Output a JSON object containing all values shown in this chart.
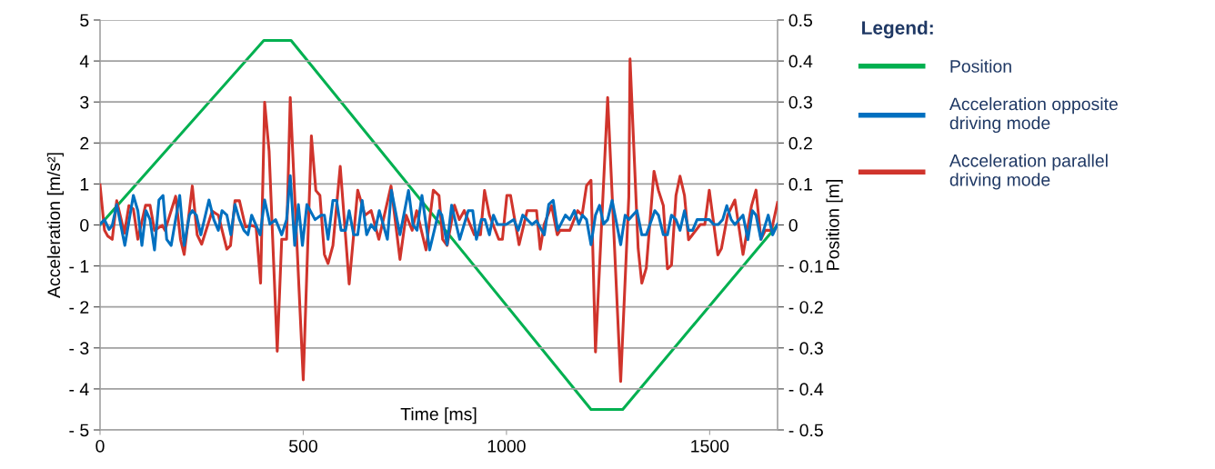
{
  "chart_data": {
    "type": "line",
    "xlabel": "Time [ms]",
    "ylabel": "Acceleration [m/s²]",
    "y2label": "Position [m]",
    "legend_title": "Legend:",
    "xlim": [
      0,
      1667
    ],
    "xticks": [
      0,
      500,
      1000,
      1500
    ],
    "ylim": [
      -5,
      5
    ],
    "yticks": [
      {
        "value": -5,
        "label": "- 5"
      },
      {
        "value": -4,
        "label": "- 4"
      },
      {
        "value": -3,
        "label": "- 3"
      },
      {
        "value": -2,
        "label": "- 2"
      },
      {
        "value": -1,
        "label": "- 1"
      },
      0,
      1,
      2,
      3,
      4,
      5
    ],
    "y2lim": [
      -0.5,
      0.5
    ],
    "y2ticks": [
      {
        "value": -0.5,
        "label": "- 0.5"
      },
      {
        "value": -0.4,
        "label": "- 0.4"
      },
      {
        "value": -0.3,
        "label": "- 0.3"
      },
      {
        "value": -0.2,
        "label": "- 0.2"
      },
      {
        "value": -0.1,
        "label": "- 0.1"
      },
      0,
      0.1,
      0.2,
      0.3,
      0.4,
      0.5
    ],
    "grid": "y",
    "legend": "right",
    "marker": "none",
    "line_style": "solid",
    "series": [
      {
        "name": "Position",
        "color": "#00b050",
        "axis": "y2",
        "x": [
          0,
          403,
          470,
          1208,
          1286,
          1667
        ],
        "values": [
          0,
          0.45,
          0.45,
          -0.45,
          -0.45,
          0
        ]
      },
      {
        "name": "Acceleration opposite\ndriving mode",
        "color": "#0070c0",
        "x": [
          0,
          11,
          22,
          30,
          41,
          61,
          82,
          93,
          103,
          113,
          123,
          134,
          145,
          155,
          164,
          175,
          196,
          207,
          220,
          227,
          237,
          248,
          268,
          280,
          291,
          300,
          312,
          322,
          332,
          343,
          354,
          364,
          373,
          394,
          405,
          418,
          432,
          447,
          459,
          468,
          479,
          488,
          498,
          509,
          529,
          544,
          552,
          561,
          573,
          582,
          593,
          604,
          613,
          624,
          634,
          645,
          656,
          667,
          677,
          687,
          707,
          717,
          738,
          759,
          770,
          780,
          792,
          811,
          834,
          841,
          854,
          865,
          885,
          906,
          917,
          926,
          938,
          947,
          958,
          968,
          978,
          999,
          1018,
          1029,
          1040,
          1063,
          1074,
          1093,
          1104,
          1115,
          1126,
          1145,
          1156,
          1167,
          1178,
          1187,
          1197,
          1208,
          1219,
          1229,
          1239,
          1249,
          1260,
          1281,
          1292,
          1301,
          1321,
          1333,
          1344,
          1365,
          1374,
          1386,
          1396,
          1406,
          1417,
          1427,
          1438,
          1448,
          1458,
          1469,
          1499,
          1510,
          1521,
          1532,
          1542,
          1553,
          1562,
          1582,
          1594,
          1605,
          1614,
          1626,
          1644,
          1655,
          1667
        ],
        "values": [
          0.02,
          0.13,
          -0.11,
          -0.01,
          0.5,
          -0.5,
          0.72,
          0.35,
          -0.5,
          0.35,
          0.13,
          -0.61,
          0.61,
          0.72,
          -0.35,
          -0.5,
          0.72,
          -0.5,
          0.24,
          0.35,
          0.24,
          -0.24,
          0.61,
          0.13,
          -0.13,
          0.35,
          0.24,
          -0.24,
          0.5,
          0.13,
          -0.13,
          -0.24,
          0.24,
          -0.24,
          0.61,
          0.02,
          0.13,
          -0.24,
          0.13,
          1.2,
          -0.5,
          0.5,
          -0.5,
          0.5,
          0.13,
          0.24,
          0.24,
          -0.35,
          0.6,
          0.6,
          -0.13,
          -0.13,
          0.35,
          -0.24,
          -0.24,
          0.6,
          -0.24,
          0.01,
          -0.13,
          0.35,
          -0.35,
          0.84,
          -0.24,
          0.84,
          0.0,
          -0.13,
          0.72,
          -0.61,
          0.35,
          0.24,
          -0.48,
          0.48,
          -0.35,
          0.35,
          0.35,
          -0.35,
          0.13,
          0.13,
          -0.24,
          0.24,
          0.01,
          0.01,
          0.13,
          -0.13,
          0.24,
          0.01,
          0.1,
          -0.24,
          0.5,
          0.6,
          -0.13,
          0.24,
          0.13,
          0.35,
          0.02,
          0.24,
          0.13,
          -0.48,
          0.24,
          0.48,
          0.02,
          0.13,
          0.6,
          -0.48,
          0.24,
          0.13,
          0.35,
          -0.24,
          -0.24,
          0.35,
          0.24,
          -0.24,
          -0.24,
          0.24,
          0.13,
          -0.13,
          0.35,
          -0.13,
          -0.13,
          0.13,
          0.13,
          0.01,
          0.01,
          0.13,
          0.47,
          0.13,
          0.01,
          0.24,
          -0.36,
          0.35,
          0.24,
          -0.35,
          0.24,
          -0.24,
          0.02
        ]
      },
      {
        "name": "Acceleration parallel\ndriving mode",
        "color": "#d0342c",
        "x": [
          0,
          11,
          19,
          30,
          41,
          60,
          71,
          82,
          93,
          112,
          123,
          134,
          153,
          160,
          186,
          198,
          207,
          227,
          239,
          250,
          276,
          291,
          312,
          321,
          332,
          343,
          358,
          373,
          384,
          395,
          405,
          416,
          436,
          447,
          459,
          468,
          477,
          500,
          520,
          531,
          541,
          552,
          561,
          573,
          591,
          613,
          634,
          652,
          667,
          686,
          716,
          738,
          753,
          768,
          779,
          802,
          820,
          834,
          843,
          854,
          872,
          884,
          896,
          921,
          936,
          946,
          958,
          981,
          990,
          1001,
          1010,
          1031,
          1051,
          1068,
          1074,
          1083,
          1093,
          1111,
          1125,
          1132,
          1145,
          1156,
          1175,
          1186,
          1197,
          1208,
          1219,
          1249,
          1281,
          1301,
          1304,
          1324,
          1333,
          1344,
          1363,
          1374,
          1386,
          1396,
          1406,
          1417,
          1427,
          1438,
          1448,
          1477,
          1488,
          1499,
          1520,
          1529,
          1544,
          1562,
          1582,
          1603,
          1614,
          1626,
          1637,
          1652,
          1667
        ],
        "values": [
          0.98,
          -0.13,
          -0.27,
          -0.35,
          0.59,
          -0.2,
          0.47,
          0.39,
          -0.35,
          0.48,
          0.48,
          -0.13,
          -0.01,
          -0.13,
          0.7,
          -0.35,
          -0.72,
          0.95,
          -0.24,
          -0.47,
          0.34,
          0.24,
          -0.59,
          -0.5,
          0.59,
          0.59,
          -0.05,
          -0.01,
          -0.05,
          -1.42,
          2.99,
          1.8,
          -3.08,
          -0.35,
          -0.35,
          3.11,
          1.13,
          -3.78,
          2.17,
          0.84,
          0.72,
          -0.72,
          -0.94,
          -0.5,
          1.43,
          -1.44,
          0.85,
          0.24,
          0.35,
          -0.35,
          0.95,
          -0.84,
          0.24,
          -0.13,
          0.35,
          -0.61,
          0.85,
          0.72,
          -0.35,
          -0.5,
          0.48,
          0.13,
          0.35,
          -0.24,
          -0.24,
          0.84,
          0.24,
          -0.35,
          -0.35,
          0.72,
          0.72,
          -0.48,
          0.35,
          0.35,
          0.35,
          -0.59,
          0.02,
          0.47,
          -0.24,
          -0.13,
          -0.13,
          -0.13,
          0.35,
          0.24,
          0.96,
          1.09,
          -3.1,
          3.11,
          -3.82,
          0.69,
          4.05,
          -0.57,
          -1.42,
          -1.05,
          1.31,
          0.84,
          0.47,
          -1.07,
          -0.98,
          0.72,
          1.19,
          0.72,
          -0.36,
          0.01,
          0.01,
          0.85,
          -0.73,
          -0.57,
          0.24,
          0.61,
          -0.72,
          0.47,
          0.85,
          -0.35,
          -0.13,
          -0.13,
          0.55
        ]
      }
    ]
  }
}
